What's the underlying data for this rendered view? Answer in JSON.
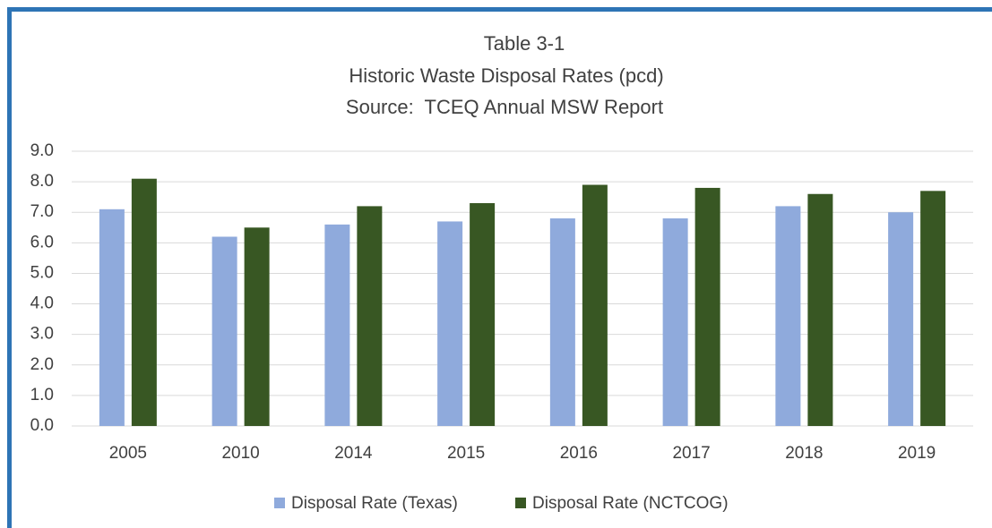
{
  "chart_data": {
    "type": "bar",
    "title": "Table 3-1",
    "subtitle": "Historic Waste Disposal Rates (pcd)",
    "source": "Source:  TCEQ Annual MSW Report",
    "categories": [
      "2005",
      "2010",
      "2014",
      "2015",
      "2016",
      "2017",
      "2018",
      "2019"
    ],
    "series": [
      {
        "name": "Disposal Rate (Texas)",
        "color": "#8faadc",
        "values": [
          7.1,
          6.2,
          6.6,
          6.7,
          6.8,
          6.8,
          7.2,
          7.0
        ]
      },
      {
        "name": "Disposal Rate (NCTCOG)",
        "color": "#385723",
        "values": [
          8.1,
          6.5,
          7.2,
          7.3,
          7.9,
          7.8,
          7.6,
          7.7
        ]
      }
    ],
    "ylim": [
      0,
      9
    ],
    "yticks": [
      {
        "value": 0,
        "label": "0.0"
      },
      {
        "value": 1,
        "label": "1.0"
      },
      {
        "value": 2,
        "label": "2.0"
      },
      {
        "value": 3,
        "label": "3.0"
      },
      {
        "value": 4,
        "label": "4.0"
      },
      {
        "value": 5,
        "label": "5.0"
      },
      {
        "value": 6,
        "label": "6.0"
      },
      {
        "value": 7,
        "label": "7.0"
      },
      {
        "value": 8,
        "label": "8.0"
      },
      {
        "value": 9,
        "label": "9.0"
      }
    ],
    "grid": true,
    "legend": "bottom"
  }
}
